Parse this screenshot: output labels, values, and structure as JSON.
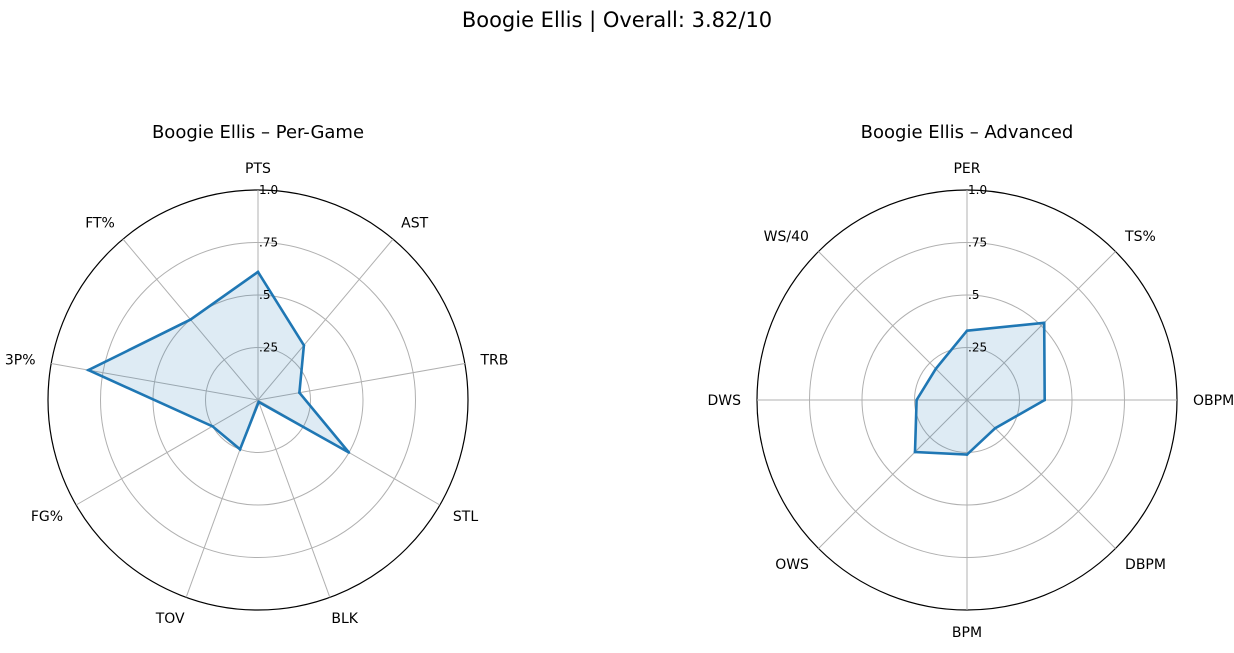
{
  "title": "Boogie Ellis | Overall: 3.82/10",
  "chart_data": [
    {
      "type": "radar",
      "title": "Boogie Ellis – Per-Game",
      "categories": [
        "PTS",
        "AST",
        "TRB",
        "STL",
        "BLK",
        "TOV",
        "FG%",
        "3P%",
        "FT%"
      ],
      "values": [
        0.61,
        0.34,
        0.2,
        0.5,
        0.01,
        0.25,
        0.25,
        0.82,
        0.5
      ],
      "rlim": [
        0,
        1.0
      ],
      "radial_ticks": [
        0.25,
        0.5,
        0.75,
        1.0
      ],
      "radial_tick_labels": [
        ".25",
        ".5",
        ".75",
        "1.0"
      ],
      "grid": true,
      "line_color": "#1f77b4",
      "fill_color": "#1f77b4"
    },
    {
      "type": "radar",
      "title": "Boogie Ellis – Advanced",
      "categories": [
        "PER",
        "TS%",
        "OBPM",
        "DBPM",
        "BPM",
        "OWS",
        "DWS",
        "WS/40"
      ],
      "values": [
        0.33,
        0.52,
        0.37,
        0.19,
        0.26,
        0.35,
        0.24,
        0.21
      ],
      "rlim": [
        0,
        1.0
      ],
      "radial_ticks": [
        0.25,
        0.5,
        0.75,
        1.0
      ],
      "radial_tick_labels": [
        ".25",
        ".5",
        ".75",
        "1.0"
      ],
      "grid": true,
      "line_color": "#1f77b4",
      "fill_color": "#1f77b4"
    }
  ]
}
